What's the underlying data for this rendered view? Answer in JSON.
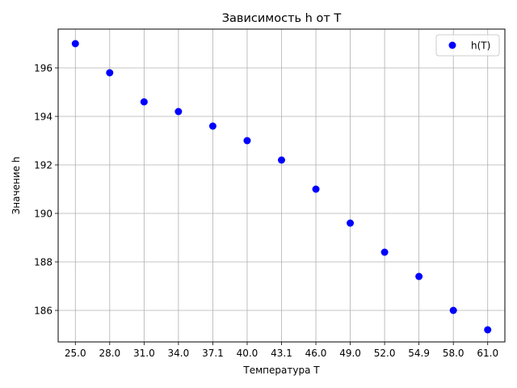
{
  "chart_data": {
    "type": "scatter",
    "title": "Зависимость h от T",
    "xlabel": "Температура T",
    "ylabel": "Значение h",
    "x_tick_labels": [
      "25.0",
      "28.0",
      "31.0",
      "34.0",
      "37.1",
      "40.0",
      "43.1",
      "46.0",
      "49.0",
      "52.0",
      "54.9",
      "58.0",
      "61.0"
    ],
    "y_ticks": [
      186,
      188,
      190,
      192,
      194,
      196
    ],
    "y_tick_labels": [
      "186",
      "188",
      "190",
      "192",
      "194",
      "196"
    ],
    "ylim": [
      184.7,
      197.6
    ],
    "grid": true,
    "legend_position": "top-right",
    "series": [
      {
        "name": "h(T)",
        "color": "#0000ff",
        "marker": "circle",
        "x": [
          "25.0",
          "28.0",
          "31.0",
          "34.0",
          "37.1",
          "40.0",
          "43.1",
          "46.0",
          "49.0",
          "52.0",
          "54.9",
          "58.0",
          "61.0"
        ],
        "y": [
          197.0,
          195.8,
          194.6,
          194.2,
          193.6,
          193.0,
          192.2,
          191.0,
          189.6,
          188.4,
          187.4,
          186.0,
          185.2
        ]
      }
    ]
  }
}
